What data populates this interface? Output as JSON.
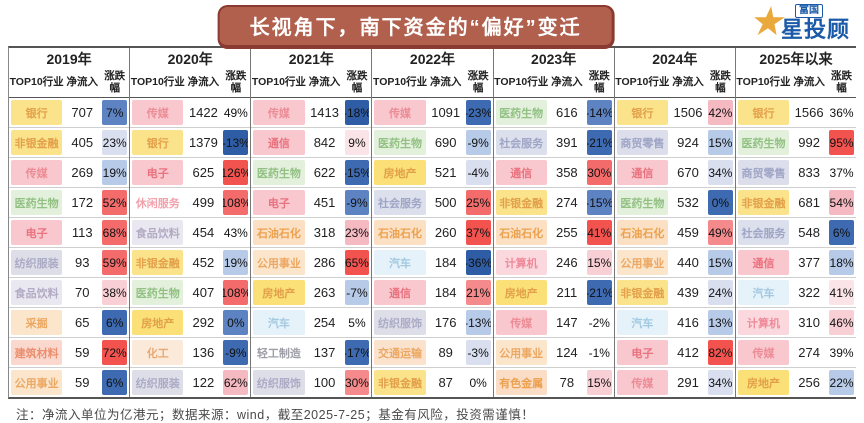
{
  "logo": {
    "brand_small": "富国",
    "brand_main": "星投顾"
  },
  "footer_note": "注：净流入单位为亿港元；数据来源：wind，截至2025-7-25；基金有风险，投资需谨慎！",
  "palette": {
    "strongRed": "#f2534f",
    "red": "#f46b6c",
    "salmon": "#f58a8c",
    "pink": "#f5b9c1",
    "lightPink": "#f8cfd5",
    "palePink": "#fbe4e7",
    "white": "#ffffff",
    "paleBlue": "#d9dfef",
    "lightBlue": "#b7cae8",
    "blue": "#5e83c3",
    "strongBlue": "#3d6ab0",
    "darkestBlue": "#2f5da5"
  },
  "industry_styles": {
    "银行": {
      "bg": "#fbe38b",
      "tx": "#e3a04a"
    },
    "非银金融": {
      "bg": "#fbe38b",
      "tx": "#e3a04a"
    },
    "房地产": {
      "bg": "#fae076",
      "tx": "#e3a04a"
    },
    "传媒": {
      "bg": "#f9c7ce",
      "tx": "#ec8c96"
    },
    "电子": {
      "bg": "#f9c7ce",
      "tx": "#e9727e"
    },
    "通信": {
      "bg": "#f9c7ce",
      "tx": "#e9727e"
    },
    "医药生物": {
      "bg": "#e2f0dc",
      "tx": "#93c184"
    },
    "纺织服装": {
      "bg": "#dedee9",
      "tx": "#ababc6"
    },
    "纺织服饰": {
      "bg": "#dedee9",
      "tx": "#ababc6"
    },
    "食品饮料": {
      "bg": "#e9e7f0",
      "tx": "#b3abc4"
    },
    "采掘": {
      "bg": "#fbe5cb",
      "tx": "#eca863"
    },
    "建筑材料": {
      "bg": "#fad8ce",
      "tx": "#ec8f70"
    },
    "公用事业": {
      "bg": "#fbe5cb",
      "tx": "#eca863"
    },
    "休闲服务": {
      "bg": "#ffffff",
      "tx": "#f2a2ac"
    },
    "化工": {
      "bg": "#fbeada",
      "tx": "#e9a873"
    },
    "石油石化": {
      "bg": "#fbe0c4",
      "tx": "#eca14e"
    },
    "社会服务": {
      "bg": "#dcdfec",
      "tx": "#9fa5c5"
    },
    "汽车": {
      "bg": "#e5f2f9",
      "tx": "#a3c9e2"
    },
    "轻工制造": {
      "bg": "#ffffff",
      "tx": "#9e9ea8"
    },
    "交通运输": {
      "bg": "#fbe2cc",
      "tx": "#eca863"
    },
    "计算机": {
      "bg": "#fbd8de",
      "tx": "#f08a9a"
    },
    "有色金属": {
      "bg": "#fbdcc4",
      "tx": "#eca150"
    },
    "商贸零售": {
      "bg": "#dcdeec",
      "tx": "#9fa5c5"
    }
  },
  "chart_data": {
    "type": "table",
    "title": "长视角下，南下资金的“偏好”变迁",
    "unit_note": "净流入单位为亿港元",
    "headers": [
      "TOP10行业",
      "净流入",
      "涨跌幅"
    ],
    "years": [
      {
        "label": "2019年",
        "rows": [
          {
            "industry": "银行",
            "inflow": 707,
            "change": "7%",
            "heat": "blue"
          },
          {
            "industry": "非银金融",
            "inflow": 405,
            "change": "23%",
            "heat": "paleBlue"
          },
          {
            "industry": "传媒",
            "inflow": 269,
            "change": "19%",
            "heat": "lightBlue"
          },
          {
            "industry": "医药生物",
            "inflow": 172,
            "change": "52%",
            "heat": "red"
          },
          {
            "industry": "电子",
            "inflow": 113,
            "change": "68%",
            "heat": "red"
          },
          {
            "industry": "纺织服装",
            "inflow": 93,
            "change": "59%",
            "heat": "red"
          },
          {
            "industry": "食品饮料",
            "inflow": 70,
            "change": "38%",
            "heat": "lightPink"
          },
          {
            "industry": "采掘",
            "inflow": 65,
            "change": "6%",
            "heat": "strongBlue"
          },
          {
            "industry": "建筑材料",
            "inflow": 59,
            "change": "72%",
            "heat": "strongRed"
          },
          {
            "industry": "公用事业",
            "inflow": 59,
            "change": "6%",
            "heat": "strongBlue"
          }
        ]
      },
      {
        "label": "2020年",
        "rows": [
          {
            "industry": "传媒",
            "inflow": 1422,
            "change": "49%",
            "heat": "white"
          },
          {
            "industry": "银行",
            "inflow": 1379,
            "change": "-13%",
            "heat": "darkestBlue"
          },
          {
            "industry": "电子",
            "inflow": 625,
            "change": "126%",
            "heat": "strongRed"
          },
          {
            "industry": "休闲服务",
            "inflow": 499,
            "change": "108%",
            "heat": "red"
          },
          {
            "industry": "食品饮料",
            "inflow": 454,
            "change": "43%",
            "heat": "white"
          },
          {
            "industry": "非银金融",
            "inflow": 452,
            "change": "19%",
            "heat": "lightBlue"
          },
          {
            "industry": "医药生物",
            "inflow": 407,
            "change": "108%",
            "heat": "red"
          },
          {
            "industry": "房地产",
            "inflow": 292,
            "change": "0%",
            "heat": "blue"
          },
          {
            "industry": "化工",
            "inflow": 136,
            "change": "-9%",
            "heat": "strongBlue"
          },
          {
            "industry": "纺织服装",
            "inflow": 122,
            "change": "62%",
            "heat": "pink"
          }
        ]
      },
      {
        "label": "2021年",
        "rows": [
          {
            "industry": "传媒",
            "inflow": 1413,
            "change": "-18%",
            "heat": "darkestBlue"
          },
          {
            "industry": "通信",
            "inflow": 842,
            "change": "9%",
            "heat": "palePink"
          },
          {
            "industry": "医药生物",
            "inflow": 622,
            "change": "-15%",
            "heat": "strongBlue"
          },
          {
            "industry": "电子",
            "inflow": 451,
            "change": "-9%",
            "heat": "blue"
          },
          {
            "industry": "石油石化",
            "inflow": 318,
            "change": "23%",
            "heat": "pink"
          },
          {
            "industry": "公用事业",
            "inflow": 286,
            "change": "65%",
            "heat": "strongRed"
          },
          {
            "industry": "房地产",
            "inflow": 263,
            "change": "-7%",
            "heat": "lightBlue"
          },
          {
            "industry": "汽车",
            "inflow": 254,
            "change": "5%",
            "heat": "white"
          },
          {
            "industry": "轻工制造",
            "inflow": 137,
            "change": "-17%",
            "heat": "strongBlue"
          },
          {
            "industry": "纺织服饰",
            "inflow": 100,
            "change": "30%",
            "heat": "salmon"
          }
        ]
      },
      {
        "label": "2022年",
        "rows": [
          {
            "industry": "传媒",
            "inflow": 1091,
            "change": "-23%",
            "heat": "strongBlue"
          },
          {
            "industry": "医药生物",
            "inflow": 690,
            "change": "-9%",
            "heat": "lightBlue"
          },
          {
            "industry": "房地产",
            "inflow": 521,
            "change": "-4%",
            "heat": "paleBlue"
          },
          {
            "industry": "社会服务",
            "inflow": 500,
            "change": "25%",
            "heat": "red"
          },
          {
            "industry": "石油石化",
            "inflow": 260,
            "change": "37%",
            "heat": "strongRed"
          },
          {
            "industry": "汽车",
            "inflow": 184,
            "change": "-36%",
            "heat": "darkestBlue"
          },
          {
            "industry": "通信",
            "inflow": 184,
            "change": "21%",
            "heat": "salmon"
          },
          {
            "industry": "纺织服饰",
            "inflow": 176,
            "change": "-13%",
            "heat": "lightBlue"
          },
          {
            "industry": "交通运输",
            "inflow": 89,
            "change": "-3%",
            "heat": "paleBlue"
          },
          {
            "industry": "非银金融",
            "inflow": 87,
            "change": "0%",
            "heat": "white"
          }
        ]
      },
      {
        "label": "2023年",
        "rows": [
          {
            "industry": "医药生物",
            "inflow": 616,
            "change": "-14%",
            "heat": "blue"
          },
          {
            "industry": "社会服务",
            "inflow": 391,
            "change": "-21%",
            "heat": "strongBlue"
          },
          {
            "industry": "通信",
            "inflow": 358,
            "change": "30%",
            "heat": "red"
          },
          {
            "industry": "非银金融",
            "inflow": 274,
            "change": "-15%",
            "heat": "blue"
          },
          {
            "industry": "石油石化",
            "inflow": 255,
            "change": "41%",
            "heat": "strongRed"
          },
          {
            "industry": "计算机",
            "inflow": 246,
            "change": "15%",
            "heat": "lightPink"
          },
          {
            "industry": "房地产",
            "inflow": 211,
            "change": "-21%",
            "heat": "strongBlue"
          },
          {
            "industry": "传媒",
            "inflow": 147,
            "change": "-2%",
            "heat": "white"
          },
          {
            "industry": "公用事业",
            "inflow": 124,
            "change": "-1%",
            "heat": "white"
          },
          {
            "industry": "有色金属",
            "inflow": 78,
            "change": "15%",
            "heat": "lightPink"
          }
        ]
      },
      {
        "label": "2024年",
        "rows": [
          {
            "industry": "银行",
            "inflow": 1506,
            "change": "42%",
            "heat": "pink"
          },
          {
            "industry": "商贸零售",
            "inflow": 924,
            "change": "15%",
            "heat": "lightBlue"
          },
          {
            "industry": "通信",
            "inflow": 670,
            "change": "34%",
            "heat": "paleBlue"
          },
          {
            "industry": "医药生物",
            "inflow": 532,
            "change": "0%",
            "heat": "strongBlue"
          },
          {
            "industry": "石油石化",
            "inflow": 459,
            "change": "49%",
            "heat": "salmon"
          },
          {
            "industry": "公用事业",
            "inflow": 440,
            "change": "15%",
            "heat": "lightBlue"
          },
          {
            "industry": "非银金融",
            "inflow": 439,
            "change": "24%",
            "heat": "paleBlue"
          },
          {
            "industry": "汽车",
            "inflow": 416,
            "change": "13%",
            "heat": "lightBlue"
          },
          {
            "industry": "电子",
            "inflow": 412,
            "change": "82%",
            "heat": "strongRed"
          },
          {
            "industry": "传媒",
            "inflow": 291,
            "change": "34%",
            "heat": "paleBlue"
          }
        ]
      },
      {
        "label": "2025年以来",
        "rows": [
          {
            "industry": "银行",
            "inflow": 1566,
            "change": "36%",
            "heat": "white"
          },
          {
            "industry": "医药生物",
            "inflow": 992,
            "change": "95%",
            "heat": "strongRed"
          },
          {
            "industry": "商贸零售",
            "inflow": 833,
            "change": "37%",
            "heat": "white"
          },
          {
            "industry": "非银金融",
            "inflow": 681,
            "change": "54%",
            "heat": "pink"
          },
          {
            "industry": "社会服务",
            "inflow": 548,
            "change": "6%",
            "heat": "strongBlue"
          },
          {
            "industry": "通信",
            "inflow": 377,
            "change": "18%",
            "heat": "lightBlue"
          },
          {
            "industry": "汽车",
            "inflow": 322,
            "change": "41%",
            "heat": "palePink"
          },
          {
            "industry": "计算机",
            "inflow": 310,
            "change": "46%",
            "heat": "lightPink"
          },
          {
            "industry": "传媒",
            "inflow": 274,
            "change": "39%",
            "heat": "white"
          },
          {
            "industry": "房地产",
            "inflow": 256,
            "change": "22%",
            "heat": "lightBlue"
          }
        ]
      }
    ]
  }
}
